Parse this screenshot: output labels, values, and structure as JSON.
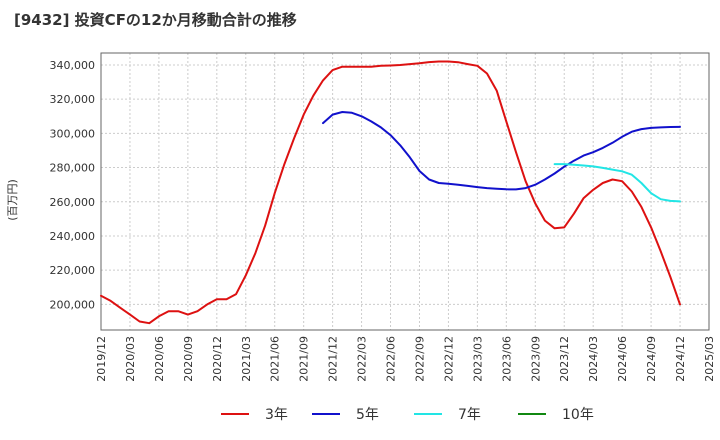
{
  "chart_data": {
    "type": "line",
    "title": "[9432]  投資CFの12か月移動合計の推移",
    "ylabel": "(百万円)",
    "xlabel": "",
    "ylim": [
      185000,
      347000
    ],
    "yticks": [
      200000,
      220000,
      240000,
      260000,
      280000,
      300000,
      320000,
      340000
    ],
    "ytick_labels": [
      "200,000",
      "220,000",
      "240,000",
      "260,000",
      "280,000",
      "300,000",
      "320,000",
      "340,000"
    ],
    "xticks": [
      "2019-12",
      "2020-03",
      "2020-06",
      "2020-09",
      "2020-12",
      "2021-03",
      "2021-06",
      "2021-09",
      "2021-12",
      "2022-03",
      "2022-06",
      "2022-09",
      "2022-12",
      "2023-03",
      "2023-06",
      "2023-09",
      "2023-12",
      "2024-03",
      "2024-06",
      "2024-09",
      "2024-12",
      "2025-03"
    ],
    "xtick_labels": [
      "2019/12",
      "2020/03",
      "2020/06",
      "2020/09",
      "2020/12",
      "2021/03",
      "2021/06",
      "2021/09",
      "2021/12",
      "2022/03",
      "2022/06",
      "2022/09",
      "2022/12",
      "2023/03",
      "2023/06",
      "2023/09",
      "2023/12",
      "2024/03",
      "2024/06",
      "2024/09",
      "2024/12",
      "2025/03"
    ],
    "grid": true,
    "legend_position": "bottom",
    "series": [
      {
        "name": "3年",
        "color": "#dd1111",
        "x": [
          "2019-12",
          "2020-01",
          "2020-02",
          "2020-03",
          "2020-04",
          "2020-05",
          "2020-06",
          "2020-07",
          "2020-08",
          "2020-09",
          "2020-10",
          "2020-11",
          "2020-12",
          "2021-01",
          "2021-02",
          "2021-03",
          "2021-04",
          "2021-05",
          "2021-06",
          "2021-07",
          "2021-08",
          "2021-09",
          "2021-10",
          "2021-11",
          "2021-12",
          "2022-01",
          "2022-02",
          "2022-03",
          "2022-04",
          "2022-05",
          "2022-06",
          "2022-07",
          "2022-08",
          "2022-09",
          "2022-10",
          "2022-11",
          "2022-12",
          "2023-01",
          "2023-02",
          "2023-03",
          "2023-04",
          "2023-05",
          "2023-06",
          "2023-07",
          "2023-08",
          "2023-09",
          "2023-10",
          "2023-11",
          "2023-12",
          "2024-01",
          "2024-02",
          "2024-03",
          "2024-04",
          "2024-05",
          "2024-06",
          "2024-07",
          "2024-08",
          "2024-09",
          "2024-10",
          "2024-11",
          "2024-12"
        ],
        "y": [
          205000,
          202000,
          198000,
          194000,
          190000,
          189000,
          193000,
          196000,
          196000,
          194000,
          196000,
          200000,
          203000,
          203000,
          206000,
          217000,
          230000,
          246000,
          265000,
          282000,
          297000,
          311000,
          322000,
          331000,
          337000,
          339000,
          339000,
          339000,
          339000,
          339500,
          339700,
          340000,
          340500,
          341000,
          341700,
          342000,
          342000,
          341600,
          340500,
          339500,
          335000,
          325000,
          307000,
          289000,
          272000,
          259000,
          249000,
          244500,
          245000,
          253000,
          262000,
          267000,
          271000,
          273000,
          272000,
          266000,
          257000,
          245000,
          231000,
          216000,
          200000
        ]
      },
      {
        "name": "5年",
        "color": "#1111cc",
        "x": [
          "2021-11",
          "2021-12",
          "2022-01",
          "2022-02",
          "2022-03",
          "2022-04",
          "2022-05",
          "2022-06",
          "2022-07",
          "2022-08",
          "2022-09",
          "2022-10",
          "2022-11",
          "2022-12",
          "2023-01",
          "2023-02",
          "2023-03",
          "2023-04",
          "2023-05",
          "2023-06",
          "2023-07",
          "2023-08",
          "2023-09",
          "2023-10",
          "2023-11",
          "2023-12",
          "2024-01",
          "2024-02",
          "2024-03",
          "2024-04",
          "2024-05",
          "2024-06",
          "2024-07",
          "2024-08",
          "2024-09",
          "2024-10",
          "2024-11",
          "2024-12"
        ],
        "y": [
          306000,
          311000,
          312500,
          312000,
          310000,
          307000,
          303500,
          299000,
          293000,
          286000,
          278000,
          273000,
          271000,
          270500,
          270000,
          269300,
          268600,
          268000,
          267600,
          267300,
          267200,
          268000,
          270000,
          273000,
          276500,
          280500,
          284000,
          287000,
          289000,
          291500,
          294500,
          298000,
          301000,
          302500,
          303200,
          303500,
          303700,
          303800
        ]
      },
      {
        "name": "7年",
        "color": "#22e5e5",
        "x": [
          "2023-11",
          "2023-12",
          "2024-01",
          "2024-02",
          "2024-03",
          "2024-04",
          "2024-05",
          "2024-06",
          "2024-07",
          "2024-08",
          "2024-09",
          "2024-10",
          "2024-11",
          "2024-12"
        ],
        "y": [
          282000,
          282000,
          281700,
          281200,
          280700,
          279800,
          278800,
          277800,
          275800,
          271000,
          265000,
          261500,
          260500,
          260200
        ]
      },
      {
        "name": "10年",
        "color": "#118811",
        "x": [],
        "y": []
      }
    ]
  }
}
